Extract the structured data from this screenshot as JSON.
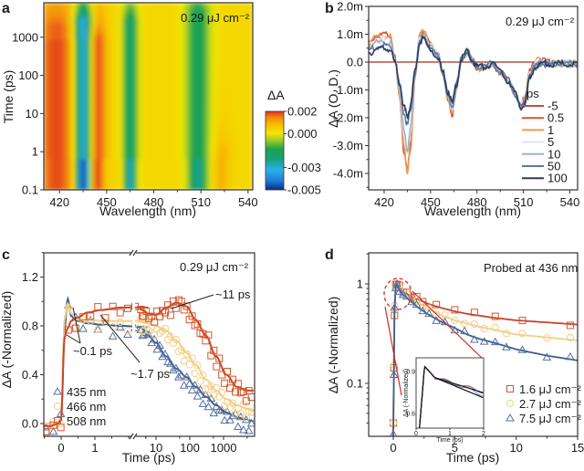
{
  "chart_data": [
    {
      "panel": "a",
      "type": "heatmap",
      "title": "",
      "annotation": "0.29 μJ cm⁻²",
      "xlabel": "Wavelength (nm)",
      "ylabel": "Time (ps)",
      "xlim": [
        410,
        543
      ],
      "ylim": [
        0.1,
        8000
      ],
      "yscale": "log",
      "xticks": [
        420,
        450,
        480,
        510,
        540
      ],
      "yticks": [
        0.1,
        1,
        10,
        100,
        1000
      ],
      "ytick_labels": [
        "0.1",
        "1",
        "10",
        "100",
        "1000"
      ],
      "colorbar": {
        "label": "ΔA",
        "ticks": [
          0.002,
          0.0,
          -0.003,
          -0.005
        ],
        "tick_labels": [
          "0.002",
          "0.000",
          "-0.003",
          "-0.005"
        ],
        "range": [
          -0.005,
          0.002
        ],
        "colors": [
          "#0a2e8c",
          "#1e7fd6",
          "#2bb0e8",
          "#15a07a",
          "#1fa34a",
          "#9ccc2a",
          "#f2e600",
          "#f7c200",
          "#f28a10",
          "#e2321a"
        ]
      },
      "bands": [
        {
          "center": 435,
          "width": 6,
          "value": -0.004,
          "decays_by_ps": 3000
        },
        {
          "center": 465,
          "width": 5,
          "value": -0.0025,
          "decays_by_ps": 3000
        },
        {
          "center": 508,
          "width": 8,
          "value": -0.0022,
          "decays_by_ps": 5000
        },
        {
          "center": 444,
          "width": 5,
          "value": 0.0018,
          "decays_by_ps": 1000
        },
        {
          "center": 418,
          "width": 12,
          "value": 0.0012,
          "decays_by_ps": 2000
        },
        {
          "center": 523,
          "width": 6,
          "value": 0.0007,
          "decays_by_ps": 1
        }
      ]
    },
    {
      "panel": "b",
      "type": "line",
      "title": "",
      "annotation": "0.29 μJ cm⁻²",
      "xlabel": "Wavelength (nm)",
      "ylabel": "ΔA (O. D.)",
      "xlim": [
        410,
        545
      ],
      "ylim": [
        -4.5,
        2.0
      ],
      "xticks": [
        420,
        450,
        480,
        510,
        540
      ],
      "yticks": [
        2.0,
        1.0,
        0.0,
        -1.0,
        -2.0,
        -3.0,
        -4.0
      ],
      "ytick_labels": [
        "2.0m",
        "1.0m",
        "0.0",
        "-1.0m",
        "-2.0m",
        "-3.0m",
        "-4.0m"
      ],
      "legend_title": "ps",
      "legend_position": "bottom-right",
      "x": [
        410,
        415,
        420,
        424,
        427,
        430,
        433,
        435,
        437,
        440,
        443,
        445,
        450,
        455,
        458,
        461,
        464,
        467,
        470,
        474,
        477,
        480,
        485,
        490,
        495,
        500,
        505,
        508,
        511,
        514,
        518,
        522,
        526,
        530,
        535,
        540,
        545
      ],
      "series": [
        {
          "name": "-5",
          "color": "#b5523d",
          "values": [
            0,
            0,
            0,
            0,
            0,
            0,
            0,
            0,
            0,
            0,
            0,
            0,
            0,
            0,
            0,
            0,
            0,
            0,
            0,
            0,
            0,
            0,
            0,
            0,
            0,
            0,
            0,
            0,
            0,
            0,
            0,
            0,
            0,
            0,
            0,
            0,
            0
          ]
        },
        {
          "name": "0.5",
          "color": "#d4582c",
          "values": [
            0.8,
            1.0,
            1.05,
            1.0,
            0.2,
            -1.2,
            -3.2,
            -3.9,
            -3.0,
            -0.5,
            1.0,
            1.2,
            0.7,
            0.3,
            -0.4,
            -1.2,
            -1.85,
            -0.8,
            0.2,
            0.4,
            0.1,
            -0.2,
            -0.1,
            0.0,
            -0.3,
            -0.6,
            -1.1,
            -1.5,
            -1.2,
            -0.3,
            0.1,
            0.15,
            0.05,
            0.0,
            0.0,
            0.0,
            0.0
          ]
        },
        {
          "name": "1",
          "color": "#ef9a4e",
          "values": [
            0.75,
            0.95,
            1.0,
            0.95,
            0.2,
            -1.1,
            -3.1,
            -3.85,
            -2.9,
            -0.4,
            1.0,
            1.15,
            0.7,
            0.3,
            -0.4,
            -1.2,
            -1.8,
            -0.8,
            0.2,
            0.4,
            0.1,
            -0.2,
            -0.1,
            0.0,
            -0.3,
            -0.6,
            -1.1,
            -1.45,
            -1.2,
            -0.3,
            0.1,
            0.12,
            0.05,
            0.0,
            0.0,
            0.0,
            0.0
          ]
        },
        {
          "name": "5",
          "color": "#dfe6ef",
          "values": [
            0.7,
            0.85,
            0.9,
            0.85,
            0.2,
            -1.0,
            -2.6,
            -3.2,
            -2.4,
            -0.3,
            0.9,
            1.05,
            0.65,
            0.3,
            -0.4,
            -1.1,
            -1.65,
            -0.8,
            0.2,
            0.4,
            0.1,
            -0.1,
            -0.1,
            0.0,
            -0.3,
            -0.6,
            -1.1,
            -1.5,
            -1.3,
            -0.4,
            0.0,
            0.05,
            0.0,
            0.0,
            0.0,
            0.0,
            0.0
          ]
        },
        {
          "name": "10",
          "color": "#9cb1cf",
          "values": [
            0.6,
            0.75,
            0.8,
            0.75,
            0.1,
            -0.9,
            -2.5,
            -3.1,
            -2.3,
            -0.3,
            0.85,
            1.0,
            0.6,
            0.3,
            -0.4,
            -1.1,
            -1.65,
            -0.8,
            0.2,
            0.4,
            0.1,
            -0.1,
            -0.1,
            0.0,
            -0.3,
            -0.6,
            -1.1,
            -1.5,
            -1.35,
            -0.4,
            0.0,
            0.05,
            0.0,
            0.0,
            0.0,
            0.0,
            0.0
          ]
        },
        {
          "name": "50",
          "color": "#5a7aa6",
          "values": [
            0.5,
            0.6,
            0.65,
            0.6,
            0.1,
            -0.8,
            -1.8,
            -2.2,
            -1.7,
            -0.3,
            0.8,
            0.95,
            0.55,
            0.25,
            -0.3,
            -1.0,
            -1.5,
            -0.7,
            0.2,
            0.45,
            0.1,
            -0.1,
            -0.1,
            0.05,
            -0.3,
            -0.6,
            -1.1,
            -1.55,
            -1.4,
            -0.45,
            -0.05,
            0.0,
            0.0,
            0.0,
            0.0,
            0.0,
            0.0
          ]
        },
        {
          "name": "100",
          "color": "#2c3e5c",
          "values": [
            0.4,
            0.5,
            0.55,
            0.5,
            0.05,
            -0.7,
            -1.6,
            -1.9,
            -1.5,
            -0.3,
            0.75,
            0.9,
            0.5,
            0.2,
            -0.3,
            -1.0,
            -1.4,
            -0.7,
            0.2,
            0.45,
            0.1,
            -0.1,
            -0.1,
            0.05,
            -0.3,
            -0.6,
            -1.1,
            -1.55,
            -1.45,
            -0.5,
            -0.1,
            0.0,
            0.0,
            0.0,
            0.0,
            0.0,
            0.0
          ]
        }
      ]
    },
    {
      "panel": "c",
      "type": "scatter",
      "title": "",
      "annotation": "0.29 μJ cm⁻²",
      "xlabel": "Time (ps)",
      "ylabel": "ΔA (-Normalized)",
      "xscale": "linear (−0.5 to 3), broken axis, log (3 to 8000)",
      "ylim": [
        -0.1,
        1.4
      ],
      "xticks_linear": [
        0,
        1
      ],
      "xticks_log": [
        10,
        100,
        1000
      ],
      "xtick_labels": [
        "0",
        "1",
        "10",
        "100",
        "1000"
      ],
      "yticks": [
        0.0,
        0.4,
        0.8,
        1.2
      ],
      "ytick_labels": [
        "0.0",
        "0.4",
        "0.8",
        "1.2"
      ],
      "legend_position": "bottom-left",
      "annotations": [
        "~0.1 ps",
        "~1.7 ps",
        "~11 ps"
      ],
      "x": [
        -0.5,
        -0.3,
        -0.1,
        0.0,
        0.1,
        0.2,
        0.3,
        0.5,
        0.8,
        1.2,
        1.8,
        2.5,
        4,
        6,
        10,
        20,
        40,
        80,
        150,
        300,
        600,
        1200,
        2500,
        5000,
        8000
      ],
      "series": [
        {
          "name": "435 nm",
          "marker": "triangle",
          "color": "#5571a3",
          "values": [
            0.0,
            0.0,
            0.0,
            0.05,
            0.75,
            1.02,
            0.88,
            0.84,
            0.82,
            0.81,
            0.8,
            0.79,
            0.78,
            0.72,
            0.66,
            0.55,
            0.45,
            0.38,
            0.3,
            0.22,
            0.15,
            0.09,
            0.05,
            0.03,
            0.02
          ]
        },
        {
          "name": "466 nm",
          "marker": "circle",
          "color": "#f2cf85",
          "values": [
            0.0,
            0.0,
            0.0,
            0.05,
            0.85,
            0.98,
            0.9,
            0.85,
            0.85,
            0.84,
            0.84,
            0.84,
            0.83,
            0.82,
            0.8,
            0.76,
            0.68,
            0.58,
            0.48,
            0.36,
            0.27,
            0.2,
            0.15,
            0.12,
            0.1
          ]
        },
        {
          "name": "508 nm",
          "marker": "square",
          "color": "#d4582c",
          "values": [
            -0.02,
            -0.02,
            0.0,
            0.03,
            0.7,
            0.78,
            0.84,
            0.87,
            0.91,
            0.93,
            0.95,
            0.95,
            0.93,
            0.9,
            0.89,
            0.95,
            0.99,
            0.96,
            0.85,
            0.72,
            0.55,
            0.4,
            0.3,
            0.27,
            0.27
          ]
        }
      ]
    },
    {
      "panel": "d",
      "type": "scatter",
      "title": "",
      "annotation": "Probed at 436 nm",
      "xlabel": "Time (ps)",
      "ylabel": "ΔA (-Normalized)",
      "xlim": [
        -2,
        15
      ],
      "ylim": [
        0.03,
        2.0
      ],
      "yscale": "log",
      "xticks": [
        0,
        5,
        10,
        15
      ],
      "yticks": [
        0.1,
        1
      ],
      "ytick_labels": [
        "0.1",
        "1"
      ],
      "legend_position": "bottom-right",
      "x": [
        0.0,
        0.1,
        0.2,
        0.3,
        0.6,
        1.0,
        1.5,
        2.0,
        3.0,
        4.0,
        5.0,
        6.0,
        7.0,
        8.0,
        10.0,
        12.5,
        15.0
      ],
      "series": [
        {
          "name": "1.6 μJ cm⁻²",
          "marker": "square",
          "color": "#d4582c",
          "values": [
            0.04,
            0.5,
            0.95,
            1.0,
            0.88,
            0.8,
            0.74,
            0.7,
            0.62,
            0.57,
            0.53,
            0.5,
            0.48,
            0.46,
            0.43,
            0.41,
            0.39
          ]
        },
        {
          "name": "2.7 μJ cm⁻²",
          "marker": "circle",
          "color": "#f2cf85",
          "values": [
            0.04,
            0.6,
            0.95,
            1.0,
            0.85,
            0.78,
            0.7,
            0.64,
            0.55,
            0.48,
            0.43,
            0.4,
            0.37,
            0.35,
            0.31,
            0.29,
            0.27
          ]
        },
        {
          "name": "7.5 μJ cm⁻²",
          "marker": "triangle",
          "color": "#5571a3",
          "values": [
            0.03,
            0.55,
            0.95,
            1.0,
            0.82,
            0.74,
            0.66,
            0.58,
            0.48,
            0.41,
            0.36,
            0.31,
            0.28,
            0.26,
            0.22,
            0.19,
            0.17
          ]
        }
      ],
      "inset": {
        "xlabel": "Time (ps)",
        "ylabel": "ΔA (-Normalized)",
        "xlim": [
          0,
          2
        ],
        "ylim": [
          0.5,
          1.0
        ],
        "xticks": [
          0,
          1,
          2
        ],
        "yticks": [
          0.6,
          0.9
        ],
        "ytick_labels": [
          "0.6",
          "0.9"
        ]
      }
    }
  ],
  "labels": {
    "panel_a": "a",
    "panel_b": "b",
    "panel_c": "c",
    "panel_d": "d"
  }
}
